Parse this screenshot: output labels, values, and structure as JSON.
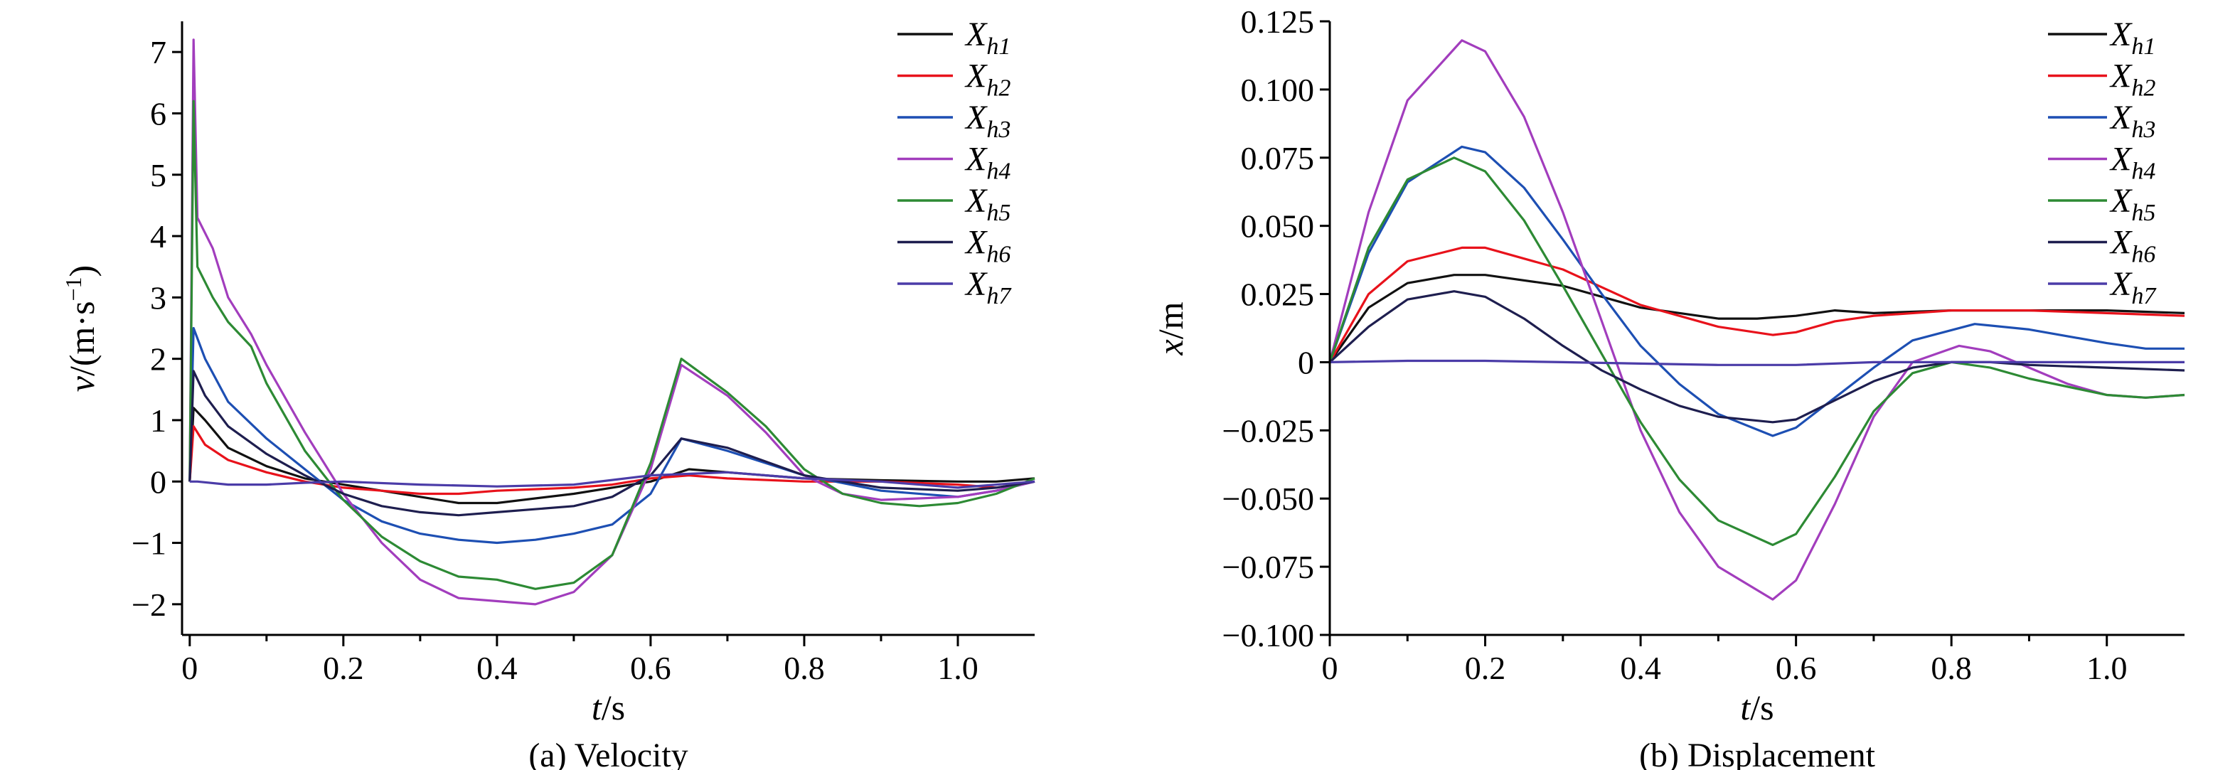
{
  "colors": {
    "Xh1": "#111111",
    "Xh2": "#e8121b",
    "Xh3": "#1d4fb3",
    "Xh4": "#a23dbd",
    "Xh5": "#2d8a34",
    "Xh6": "#1e1e4f",
    "Xh7": "#4b3ca8"
  },
  "chart_data": [
    {
      "type": "line",
      "caption": "(a) Velocity",
      "xlabel": {
        "italic": "t",
        "rest": "/s"
      },
      "ylabel": {
        "italic": "v",
        "rest": "/(m·s",
        "sup": "−1",
        "end": ")"
      },
      "xlim": [
        -0.01,
        1.1
      ],
      "ylim": [
        -2.5,
        7.5
      ],
      "xticks": [
        0,
        0.2,
        0.4,
        0.6,
        0.8,
        1.0
      ],
      "xtick_labels": [
        "0",
        "0.2",
        "0.4",
        "0.6",
        "0.8",
        "1.0"
      ],
      "yticks": [
        -2,
        -1,
        0,
        1,
        2,
        3,
        4,
        5,
        6,
        7
      ],
      "ytick_labels": [
        "−2",
        "−1",
        "0",
        "1",
        "2",
        "3",
        "4",
        "5",
        "6",
        "7"
      ],
      "legend_position": "top-right",
      "series": [
        {
          "name": "Xh1",
          "base": "X",
          "sub": "h1",
          "x": [
            0,
            0.005,
            0.02,
            0.05,
            0.1,
            0.15,
            0.2,
            0.25,
            0.3,
            0.35,
            0.4,
            0.5,
            0.55,
            0.6,
            0.65,
            0.7,
            0.8,
            0.9,
            1.0,
            1.05,
            1.1
          ],
          "y": [
            0,
            1.2,
            1.0,
            0.55,
            0.25,
            0.05,
            -0.05,
            -0.15,
            -0.25,
            -0.35,
            -0.35,
            -0.2,
            -0.1,
            0.0,
            0.2,
            0.15,
            0.05,
            0.02,
            0.0,
            0.0,
            0.05
          ]
        },
        {
          "name": "Xh2",
          "base": "X",
          "sub": "h2",
          "x": [
            0,
            0.005,
            0.02,
            0.05,
            0.1,
            0.15,
            0.2,
            0.25,
            0.3,
            0.35,
            0.4,
            0.5,
            0.55,
            0.6,
            0.65,
            0.7,
            0.8,
            0.9,
            1.0,
            1.05,
            1.1
          ],
          "y": [
            0,
            0.9,
            0.6,
            0.35,
            0.15,
            0.0,
            -0.1,
            -0.15,
            -0.2,
            -0.2,
            -0.15,
            -0.1,
            -0.05,
            0.05,
            0.1,
            0.05,
            0.0,
            0.0,
            -0.05,
            -0.1,
            0.0
          ]
        },
        {
          "name": "Xh3",
          "base": "X",
          "sub": "h3",
          "x": [
            0,
            0.005,
            0.02,
            0.05,
            0.1,
            0.15,
            0.2,
            0.25,
            0.3,
            0.35,
            0.4,
            0.45,
            0.5,
            0.55,
            0.6,
            0.64,
            0.7,
            0.8,
            0.9,
            1.0,
            1.05,
            1.1
          ],
          "y": [
            0,
            2.5,
            2.0,
            1.3,
            0.7,
            0.2,
            -0.3,
            -0.65,
            -0.85,
            -0.95,
            -1.0,
            -0.95,
            -0.85,
            -0.7,
            -0.2,
            0.7,
            0.5,
            0.1,
            -0.15,
            -0.25,
            -0.15,
            0.0
          ]
        },
        {
          "name": "Xh4",
          "base": "X",
          "sub": "h4",
          "x": [
            0,
            0.005,
            0.01,
            0.03,
            0.05,
            0.08,
            0.1,
            0.15,
            0.2,
            0.25,
            0.3,
            0.35,
            0.4,
            0.45,
            0.5,
            0.55,
            0.6,
            0.64,
            0.7,
            0.75,
            0.8,
            0.85,
            0.9,
            1.0,
            1.05,
            1.1
          ],
          "y": [
            0,
            7.2,
            4.3,
            3.8,
            3.0,
            2.4,
            1.9,
            0.8,
            -0.2,
            -1.0,
            -1.6,
            -1.9,
            -1.95,
            -2.0,
            -1.8,
            -1.2,
            0.2,
            1.9,
            1.4,
            0.8,
            0.1,
            -0.2,
            -0.3,
            -0.25,
            -0.15,
            0.0
          ]
        },
        {
          "name": "Xh5",
          "base": "X",
          "sub": "h5",
          "x": [
            0,
            0.005,
            0.01,
            0.03,
            0.05,
            0.08,
            0.1,
            0.15,
            0.2,
            0.25,
            0.3,
            0.35,
            0.4,
            0.45,
            0.5,
            0.55,
            0.6,
            0.64,
            0.7,
            0.75,
            0.8,
            0.85,
            0.9,
            0.95,
            1.0,
            1.05,
            1.1
          ],
          "y": [
            0,
            6.2,
            3.5,
            3.0,
            2.6,
            2.2,
            1.6,
            0.5,
            -0.3,
            -0.9,
            -1.3,
            -1.55,
            -1.6,
            -1.75,
            -1.65,
            -1.2,
            0.3,
            2.0,
            1.45,
            0.9,
            0.2,
            -0.2,
            -0.35,
            -0.4,
            -0.35,
            -0.2,
            0.05
          ]
        },
        {
          "name": "Xh6",
          "base": "X",
          "sub": "h6",
          "x": [
            0,
            0.005,
            0.02,
            0.05,
            0.1,
            0.15,
            0.2,
            0.25,
            0.3,
            0.35,
            0.4,
            0.5,
            0.55,
            0.6,
            0.64,
            0.7,
            0.8,
            0.9,
            1.0,
            1.05,
            1.1
          ],
          "y": [
            0,
            1.8,
            1.4,
            0.9,
            0.45,
            0.1,
            -0.2,
            -0.4,
            -0.5,
            -0.55,
            -0.5,
            -0.4,
            -0.25,
            0.1,
            0.7,
            0.55,
            0.1,
            -0.1,
            -0.15,
            -0.1,
            0.0
          ]
        },
        {
          "name": "Xh7",
          "base": "X",
          "sub": "h7",
          "x": [
            0,
            0.01,
            0.05,
            0.1,
            0.15,
            0.2,
            0.3,
            0.4,
            0.5,
            0.6,
            0.7,
            0.8,
            0.9,
            1.0,
            1.1
          ],
          "y": [
            0,
            0.0,
            -0.05,
            -0.05,
            -0.02,
            0.0,
            -0.05,
            -0.08,
            -0.05,
            0.1,
            0.15,
            0.05,
            0.0,
            -0.1,
            0.0
          ]
        }
      ]
    },
    {
      "type": "line",
      "caption": "(b) Displacement",
      "xlabel": {
        "italic": "t",
        "rest": "/s"
      },
      "ylabel": {
        "italic": "x",
        "rest": "/m"
      },
      "xlim": [
        0,
        1.1
      ],
      "ylim": [
        -0.1,
        0.125
      ],
      "xticks": [
        0,
        0.2,
        0.4,
        0.6,
        0.8,
        1.0
      ],
      "xtick_labels": [
        "0",
        "0.2",
        "0.4",
        "0.6",
        "0.8",
        "1.0"
      ],
      "yticks": [
        -0.1,
        -0.075,
        -0.05,
        -0.025,
        0,
        0.025,
        0.05,
        0.075,
        0.1,
        0.125
      ],
      "ytick_labels": [
        "−0.100",
        "−0.075",
        "−0.050",
        "−0.025",
        "0",
        "0.025",
        "0.050",
        "0.075",
        "0.100",
        "0.125"
      ],
      "legend_position": "top-right",
      "series": [
        {
          "name": "Xh1",
          "base": "X",
          "sub": "h1",
          "x": [
            0,
            0.05,
            0.1,
            0.16,
            0.2,
            0.3,
            0.4,
            0.5,
            0.55,
            0.6,
            0.65,
            0.7,
            0.8,
            0.9,
            1.0,
            1.1
          ],
          "y": [
            0,
            0.02,
            0.029,
            0.032,
            0.032,
            0.028,
            0.02,
            0.016,
            0.016,
            0.017,
            0.019,
            0.018,
            0.019,
            0.019,
            0.019,
            0.018
          ]
        },
        {
          "name": "Xh2",
          "base": "X",
          "sub": "h2",
          "x": [
            0,
            0.05,
            0.1,
            0.17,
            0.2,
            0.3,
            0.4,
            0.5,
            0.57,
            0.6,
            0.65,
            0.7,
            0.8,
            0.9,
            1.0,
            1.1
          ],
          "y": [
            0,
            0.025,
            0.037,
            0.042,
            0.042,
            0.034,
            0.021,
            0.013,
            0.01,
            0.011,
            0.015,
            0.017,
            0.019,
            0.019,
            0.018,
            0.017
          ]
        },
        {
          "name": "Xh3",
          "base": "X",
          "sub": "h3",
          "x": [
            0,
            0.05,
            0.1,
            0.17,
            0.2,
            0.25,
            0.3,
            0.35,
            0.4,
            0.45,
            0.5,
            0.57,
            0.6,
            0.65,
            0.7,
            0.75,
            0.83,
            0.9,
            1.0,
            1.05,
            1.1
          ],
          "y": [
            0,
            0.04,
            0.066,
            0.079,
            0.077,
            0.064,
            0.045,
            0.025,
            0.006,
            -0.008,
            -0.019,
            -0.027,
            -0.024,
            -0.013,
            -0.002,
            0.008,
            0.014,
            0.012,
            0.007,
            0.005,
            0.005
          ]
        },
        {
          "name": "Xh4",
          "base": "X",
          "sub": "h4",
          "x": [
            0,
            0.05,
            0.1,
            0.17,
            0.2,
            0.25,
            0.3,
            0.35,
            0.4,
            0.45,
            0.5,
            0.57,
            0.6,
            0.65,
            0.7,
            0.75,
            0.81,
            0.85,
            0.9,
            0.95,
            1.0,
            1.05,
            1.1
          ],
          "y": [
            0,
            0.055,
            0.096,
            0.118,
            0.114,
            0.09,
            0.055,
            0.015,
            -0.025,
            -0.055,
            -0.075,
            -0.087,
            -0.08,
            -0.052,
            -0.02,
            0.0,
            0.006,
            0.004,
            -0.002,
            -0.008,
            -0.012,
            -0.013,
            -0.012
          ]
        },
        {
          "name": "Xh5",
          "base": "X",
          "sub": "h5",
          "x": [
            0,
            0.05,
            0.1,
            0.16,
            0.2,
            0.25,
            0.3,
            0.35,
            0.4,
            0.45,
            0.5,
            0.57,
            0.6,
            0.65,
            0.7,
            0.75,
            0.8,
            0.85,
            0.9,
            0.95,
            1.0,
            1.05,
            1.1
          ],
          "y": [
            0,
            0.042,
            0.067,
            0.075,
            0.07,
            0.052,
            0.028,
            0.003,
            -0.022,
            -0.043,
            -0.058,
            -0.067,
            -0.063,
            -0.042,
            -0.018,
            -0.004,
            0.0,
            -0.002,
            -0.006,
            -0.009,
            -0.012,
            -0.013,
            -0.012
          ]
        },
        {
          "name": "Xh6",
          "base": "X",
          "sub": "h6",
          "x": [
            0,
            0.05,
            0.1,
            0.16,
            0.2,
            0.25,
            0.3,
            0.35,
            0.4,
            0.45,
            0.5,
            0.57,
            0.6,
            0.65,
            0.7,
            0.75,
            0.8,
            0.85,
            0.9,
            1.0,
            1.1
          ],
          "y": [
            0,
            0.013,
            0.023,
            0.026,
            0.024,
            0.016,
            0.006,
            -0.003,
            -0.01,
            -0.016,
            -0.02,
            -0.022,
            -0.021,
            -0.014,
            -0.007,
            -0.002,
            0.0,
            0.0,
            -0.001,
            -0.002,
            -0.003
          ]
        },
        {
          "name": "Xh7",
          "base": "X",
          "sub": "h7",
          "x": [
            0,
            0.1,
            0.2,
            0.3,
            0.4,
            0.5,
            0.6,
            0.7,
            0.8,
            0.9,
            1.0,
            1.1
          ],
          "y": [
            0,
            0.0005,
            0.0005,
            0.0,
            -0.0005,
            -0.001,
            -0.001,
            0.0,
            0.0,
            0.0,
            0.0,
            0.0
          ]
        }
      ]
    }
  ]
}
